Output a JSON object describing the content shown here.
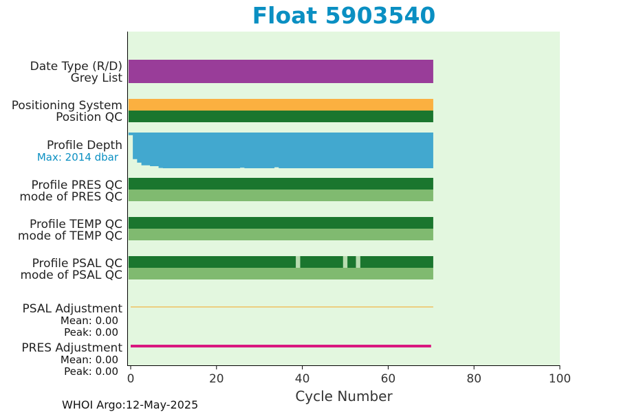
{
  "chart_data": {
    "type": "bar",
    "title": "Float 5903540",
    "xlabel": "Cycle Number",
    "xlim": [
      0,
      100
    ],
    "xticks": [
      0,
      20,
      40,
      60,
      80,
      100
    ],
    "xtick_labels": [
      "0",
      "20",
      "40",
      "60",
      "80",
      "100"
    ],
    "grid": false,
    "background_color": "#e3f7df",
    "footer": "WHOI Argo:12-May-2025",
    "last_cycle": 70,
    "rows": [
      {
        "id": "date-type",
        "label": "Date Type (R/D)",
        "color": "#993d99",
        "gaps": []
      },
      {
        "id": "grey-list",
        "label": "Grey List",
        "color": "#993d99",
        "gaps": []
      },
      {
        "id": "positioning-system",
        "label": "Positioning System",
        "color": "#fbb040",
        "gaps": []
      },
      {
        "id": "position-qc",
        "label": "Position QC",
        "color": "#1a762e",
        "gaps": []
      },
      {
        "id": "profile-pres-qc",
        "label": "Profile PRES QC",
        "color": "#1a762e",
        "gaps": []
      },
      {
        "id": "mode-pres-qc",
        "label": "mode of PRES QC",
        "color": "#80ba70",
        "gaps": []
      },
      {
        "id": "profile-temp-qc",
        "label": "Profile TEMP QC",
        "color": "#1a762e",
        "gaps": []
      },
      {
        "id": "mode-temp-qc",
        "label": "mode of TEMP QC",
        "color": "#80ba70",
        "gaps": []
      },
      {
        "id": "profile-psal-qc",
        "label": "Profile PSAL QC",
        "color": "#1a762e",
        "gaps": [
          39,
          50,
          53
        ]
      },
      {
        "id": "mode-psal-qc",
        "label": "mode of PSAL QC",
        "color": "#80ba70",
        "gaps": []
      }
    ],
    "profile_depth": {
      "label": "Profile Depth",
      "max_label": "Max: 2014 dbar",
      "max_dbar": 2014,
      "color": "#42a8cf",
      "cycles": [
        0,
        1,
        2,
        3,
        5,
        7,
        8,
        26,
        27,
        34,
        35,
        70
      ],
      "depths": [
        150,
        1500,
        1700,
        1850,
        1900,
        2000,
        2014,
        1985,
        2014,
        1960,
        2014,
        2014
      ]
    },
    "adjustments": [
      {
        "id": "psal",
        "label": "PSAL Adjustment",
        "mean": "Mean: 0.00",
        "peak": "Peak: 0.00",
        "color": "#f4a41f",
        "line_weight": "thin"
      },
      {
        "id": "pres",
        "label": "PRES Adjustment",
        "mean": "Mean: 0.00",
        "peak": "Peak: 0.00",
        "color": "#d9187f",
        "line_weight": "thick"
      }
    ]
  }
}
